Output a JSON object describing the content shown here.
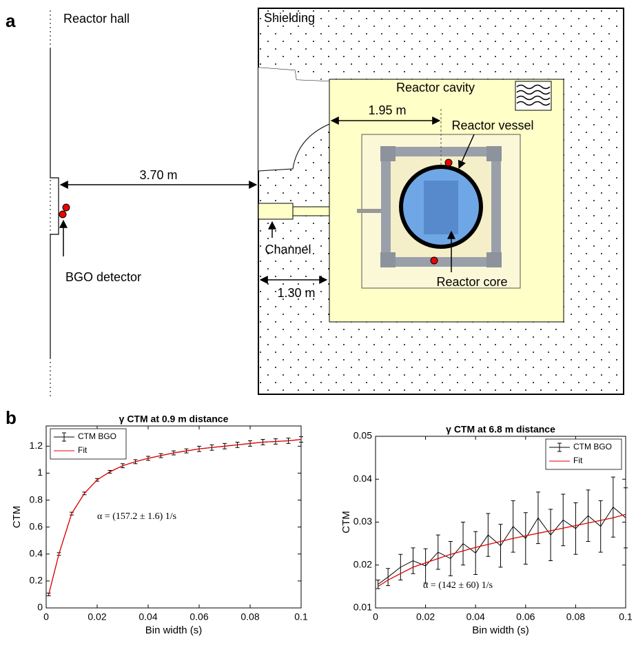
{
  "panels": {
    "a": "a",
    "b": "b"
  },
  "diagram": {
    "reactor_hall": "Reactor hall",
    "shielding": "Shielding",
    "reactor_cavity": "Reactor cavity",
    "dist_cavity": "1.95 m",
    "reactor_vessel": "Reactor vessel",
    "dist_hall": "3.70 m",
    "channel": "Channel",
    "bgo_detector": "BGO detector",
    "dist_channel": "1.30 m",
    "reactor_core": "Reactor core"
  },
  "chart_data": [
    {
      "type": "line",
      "title": "γ CTM at 0.9 m distance",
      "x_label": "Bin width (s)",
      "y_label": "CTM",
      "annotation": "α = (157.2 ± 1.6) 1/s",
      "legend": "upper left",
      "x": [
        0.001,
        0.005,
        0.01,
        0.015,
        0.02,
        0.025,
        0.03,
        0.035,
        0.04,
        0.045,
        0.05,
        0.055,
        0.06,
        0.065,
        0.07,
        0.075,
        0.08,
        0.085,
        0.09,
        0.095,
        0.1
      ],
      "series": [
        {
          "name": "CTM BGO",
          "color": "#000000",
          "values": [
            0.1,
            0.4,
            0.7,
            0.85,
            0.95,
            1.01,
            1.055,
            1.085,
            1.11,
            1.13,
            1.15,
            1.165,
            1.18,
            1.19,
            1.2,
            1.21,
            1.22,
            1.23,
            1.235,
            1.24,
            1.25
          ],
          "errors": [
            0.01,
            0.01,
            0.01,
            0.01,
            0.01,
            0.01,
            0.015,
            0.015,
            0.015,
            0.015,
            0.015,
            0.015,
            0.02,
            0.02,
            0.02,
            0.02,
            0.02,
            0.02,
            0.02,
            0.02,
            0.02
          ]
        },
        {
          "name": "Fit",
          "color": "#e00000",
          "values": [
            0.1,
            0.4,
            0.7,
            0.85,
            0.95,
            1.01,
            1.055,
            1.085,
            1.11,
            1.13,
            1.15,
            1.165,
            1.18,
            1.19,
            1.2,
            1.21,
            1.22,
            1.23,
            1.235,
            1.24,
            1.25
          ]
        }
      ],
      "xlim": [
        0,
        0.1
      ],
      "xticks": [
        0,
        0.02,
        0.04,
        0.06,
        0.08,
        0.1
      ],
      "ylim": [
        0,
        1.35
      ],
      "yticks": [
        0,
        0.2,
        0.4,
        0.6,
        0.8,
        1,
        1.2
      ]
    },
    {
      "type": "line",
      "title": "γ CTM at 6.8 m distance",
      "x_label": "Bin width (s)",
      "y_label": "CTM",
      "annotation": "α = (142 ± 60) 1/s",
      "legend": "upper right",
      "x": [
        0.001,
        0.005,
        0.01,
        0.015,
        0.02,
        0.025,
        0.03,
        0.035,
        0.04,
        0.045,
        0.05,
        0.055,
        0.06,
        0.065,
        0.07,
        0.075,
        0.08,
        0.085,
        0.09,
        0.095,
        0.1
      ],
      "series": [
        {
          "name": "CTM BGO",
          "color": "#000000",
          "values": [
            0.0155,
            0.0172,
            0.0195,
            0.021,
            0.0198,
            0.023,
            0.0215,
            0.025,
            0.0228,
            0.027,
            0.0245,
            0.029,
            0.0262,
            0.031,
            0.027,
            0.0305,
            0.0285,
            0.0315,
            0.029,
            0.0335,
            0.031
          ],
          "errors": [
            0.001,
            0.002,
            0.003,
            0.003,
            0.004,
            0.004,
            0.004,
            0.005,
            0.005,
            0.005,
            0.005,
            0.006,
            0.006,
            0.006,
            0.006,
            0.006,
            0.006,
            0.006,
            0.006,
            0.007,
            0.007
          ]
        },
        {
          "name": "Fit",
          "color": "#e00000",
          "values": [
            0.015,
            0.0165,
            0.018,
            0.0195,
            0.0205,
            0.0215,
            0.0225,
            0.0233,
            0.0241,
            0.0248,
            0.0255,
            0.0262,
            0.0268,
            0.0274,
            0.028,
            0.0286,
            0.0292,
            0.0298,
            0.0304,
            0.031,
            0.0318
          ]
        }
      ],
      "xlim": [
        0,
        0.1
      ],
      "xticks": [
        0,
        0.02,
        0.04,
        0.06,
        0.08,
        0.1
      ],
      "ylim": [
        0.01,
        0.05
      ],
      "yticks": [
        0.01,
        0.02,
        0.03,
        0.04,
        0.05
      ]
    }
  ]
}
